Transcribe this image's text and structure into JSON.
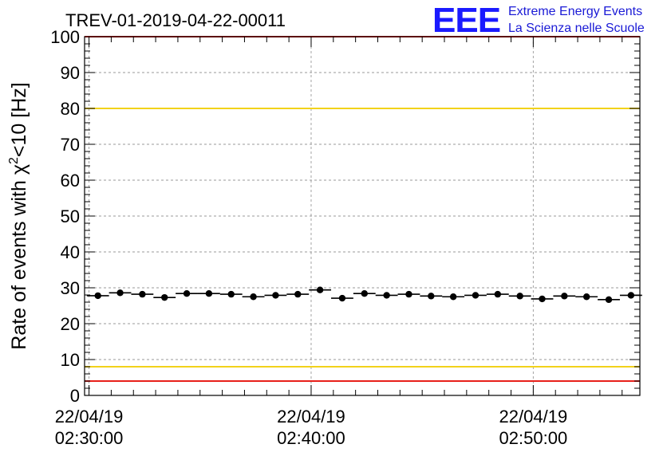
{
  "chart_data": {
    "type": "scatter",
    "title": "TREV-01-2019-04-22-00011",
    "ylabel": {
      "main": "Rate of events with χ",
      "superscript": "2",
      "suffix": "<10 [Hz]"
    },
    "xlabel": "",
    "logo": {
      "letters": "EEE",
      "line1": "Extreme Energy Events",
      "line2": "La Scienza nelle Scuole"
    },
    "ylim": [
      0,
      100
    ],
    "yticks": [
      0,
      10,
      20,
      30,
      40,
      50,
      60,
      70,
      80,
      90,
      100
    ],
    "xlim_minutes": [
      -0.2,
      24.8
    ],
    "x_unit": "minutes after 22/04/19 02:30:00",
    "xticks": [
      {
        "minute": 0,
        "date": "22/04/19",
        "time": "02:30:00"
      },
      {
        "minute": 10,
        "date": "22/04/19",
        "time": "02:40:00"
      },
      {
        "minute": 20,
        "date": "22/04/19",
        "time": "02:50:00"
      }
    ],
    "grid": true,
    "reference_lines": [
      {
        "value": 80,
        "color": "#f2d21b"
      },
      {
        "value": 8,
        "color": "#f2d21b"
      },
      {
        "value": 100,
        "color": "#e8201a"
      },
      {
        "value": 4,
        "color": "#e8201a"
      }
    ],
    "series": [
      {
        "marker_color": "#000000",
        "x_halfwidth": 0.5,
        "points": [
          {
            "x": 0.4,
            "y": 27.8
          },
          {
            "x": 1.4,
            "y": 28.6
          },
          {
            "x": 2.4,
            "y": 28.2
          },
          {
            "x": 3.4,
            "y": 27.3
          },
          {
            "x": 4.4,
            "y": 28.4
          },
          {
            "x": 5.4,
            "y": 28.4
          },
          {
            "x": 6.4,
            "y": 28.2
          },
          {
            "x": 7.4,
            "y": 27.5
          },
          {
            "x": 8.4,
            "y": 27.9
          },
          {
            "x": 9.4,
            "y": 28.2
          },
          {
            "x": 10.4,
            "y": 29.4
          },
          {
            "x": 11.4,
            "y": 27.1
          },
          {
            "x": 12.4,
            "y": 28.4
          },
          {
            "x": 13.4,
            "y": 27.9
          },
          {
            "x": 14.4,
            "y": 28.2
          },
          {
            "x": 15.4,
            "y": 27.7
          },
          {
            "x": 16.4,
            "y": 27.5
          },
          {
            "x": 17.4,
            "y": 27.9
          },
          {
            "x": 18.4,
            "y": 28.2
          },
          {
            "x": 19.4,
            "y": 27.7
          },
          {
            "x": 20.4,
            "y": 26.9
          },
          {
            "x": 21.4,
            "y": 27.7
          },
          {
            "x": 22.4,
            "y": 27.5
          },
          {
            "x": 23.4,
            "y": 26.7
          },
          {
            "x": 24.4,
            "y": 27.9
          }
        ]
      }
    ]
  }
}
